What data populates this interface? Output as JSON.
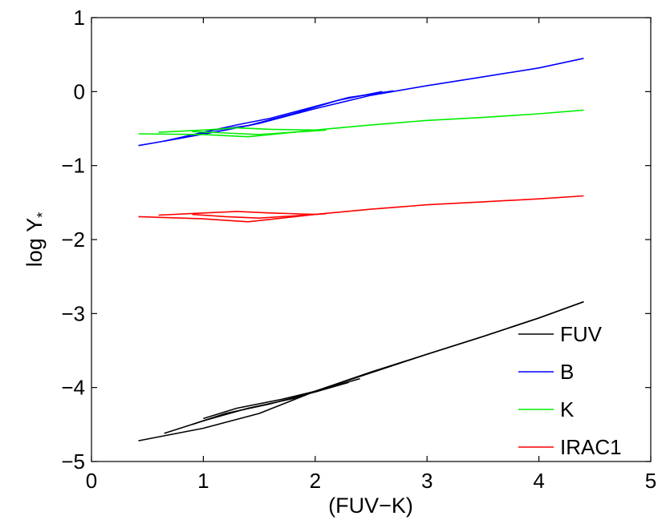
{
  "chart_data": {
    "type": "line",
    "title": "",
    "xlabel": "(FUV−K)",
    "ylabel": "log Υ",
    "ylabel_sub": "*",
    "xlim": [
      0,
      5
    ],
    "ylim": [
      -5,
      1
    ],
    "xticks": [
      0,
      1,
      2,
      3,
      4,
      5
    ],
    "yticks": [
      1,
      0,
      -1,
      -2,
      -3,
      -4,
      -5
    ],
    "xtick_labels": [
      "0",
      "1",
      "2",
      "3",
      "4",
      "5"
    ],
    "ytick_labels": [
      "1",
      "0",
      "−1",
      "−2",
      "−3",
      "−4",
      "−5"
    ],
    "grid": false,
    "legend_position": "bottom-right",
    "series": [
      {
        "name": "FUV",
        "color": "#000000",
        "tracks": [
          {
            "x": [
              0.42,
              1.0,
              1.5,
              2.0,
              2.5,
              3.0,
              3.5,
              4.0,
              4.4
            ],
            "y": [
              -4.72,
              -4.55,
              -4.35,
              -4.05,
              -3.8,
              -3.55,
              -3.31,
              -3.06,
              -2.84
            ]
          },
          {
            "x": [
              0.65,
              1.0,
              1.4,
              1.8,
              2.0,
              2.5,
              3.0,
              3.5,
              4.0,
              4.4
            ],
            "y": [
              -4.62,
              -4.45,
              -4.28,
              -4.15,
              -4.05,
              -3.79,
              -3.55,
              -3.31,
              -3.06,
              -2.84
            ]
          },
          {
            "x": [
              0.9,
              1.2,
              1.6,
              2.0,
              2.3
            ],
            "y": [
              -4.5,
              -4.35,
              -4.22,
              -4.06,
              -3.93
            ]
          },
          {
            "x": [
              1.0,
              1.3,
              1.7,
              2.0,
              2.4
            ],
            "y": [
              -4.42,
              -4.28,
              -4.16,
              -4.05,
              -3.88
            ]
          }
        ]
      },
      {
        "name": "B",
        "color": "#0000ff",
        "tracks": [
          {
            "x": [
              0.42,
              0.8,
              1.2,
              1.5,
              2.0,
              2.5,
              3.0,
              3.5,
              4.0,
              4.4
            ],
            "y": [
              -0.73,
              -0.63,
              -0.52,
              -0.43,
              -0.23,
              -0.05,
              0.08,
              0.2,
              0.32,
              0.45
            ]
          },
          {
            "x": [
              0.65,
              1.0,
              1.3,
              1.6,
              2.0,
              2.3,
              2.7
            ],
            "y": [
              -0.67,
              -0.55,
              -0.45,
              -0.36,
              -0.2,
              -0.08,
              0.01
            ]
          },
          {
            "x": [
              0.9,
              1.1,
              1.4,
              1.8,
              2.2,
              2.6
            ],
            "y": [
              -0.6,
              -0.52,
              -0.46,
              -0.3,
              -0.12,
              0.0
            ]
          }
        ]
      },
      {
        "name": "K",
        "color": "#00ee00",
        "tracks": [
          {
            "x": [
              0.42,
              1.0,
              1.4,
              2.0,
              2.5,
              3.0,
              3.5,
              4.0,
              4.4
            ],
            "y": [
              -0.57,
              -0.58,
              -0.61,
              -0.52,
              -0.45,
              -0.39,
              -0.35,
              -0.3,
              -0.25
            ]
          },
          {
            "x": [
              0.6,
              1.0,
              1.3,
              1.6,
              2.0
            ],
            "y": [
              -0.55,
              -0.52,
              -0.49,
              -0.51,
              -0.52
            ]
          },
          {
            "x": [
              0.9,
              1.2,
              1.5,
              1.8,
              2.1
            ],
            "y": [
              -0.54,
              -0.56,
              -0.58,
              -0.55,
              -0.52
            ]
          }
        ]
      },
      {
        "name": "IRAC1",
        "color": "#ff0000",
        "tracks": [
          {
            "x": [
              0.42,
              1.0,
              1.4,
              2.0,
              2.5,
              3.0,
              3.5,
              4.0,
              4.4
            ],
            "y": [
              -1.69,
              -1.72,
              -1.76,
              -1.66,
              -1.59,
              -1.53,
              -1.49,
              -1.45,
              -1.41
            ]
          },
          {
            "x": [
              0.6,
              1.0,
              1.3,
              1.6,
              2.0
            ],
            "y": [
              -1.67,
              -1.64,
              -1.62,
              -1.64,
              -1.66
            ]
          },
          {
            "x": [
              0.9,
              1.2,
              1.5,
              1.8,
              2.1
            ],
            "y": [
              -1.66,
              -1.69,
              -1.71,
              -1.68,
              -1.65
            ]
          }
        ]
      }
    ]
  }
}
